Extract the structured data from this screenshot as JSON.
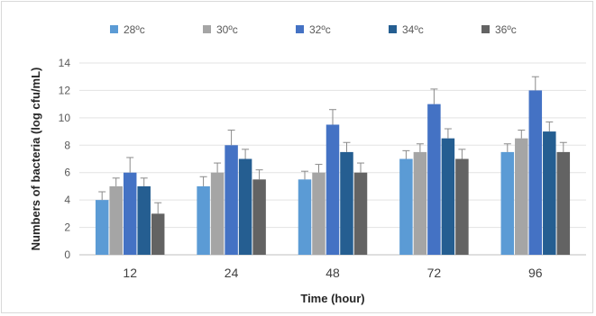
{
  "chart_data": {
    "type": "bar",
    "title": "",
    "xlabel": "Time (hour)",
    "ylabel": "Numbers of bacteria (log cfu/mL)",
    "categories": [
      "12",
      "24",
      "48",
      "72",
      "96"
    ],
    "ylim": [
      0,
      14
    ],
    "yticks": [
      0,
      2,
      4,
      6,
      8,
      10,
      12,
      14
    ],
    "grid": "horizontal",
    "legend_position": "top",
    "series": [
      {
        "name": "28ºc",
        "color": "#5b9bd5",
        "values": [
          4.0,
          5.0,
          5.5,
          7.0,
          7.5
        ],
        "errors": [
          0.6,
          0.7,
          0.6,
          0.6,
          0.6
        ]
      },
      {
        "name": "30ºc",
        "color": "#a5a5a5",
        "values": [
          5.0,
          6.0,
          6.0,
          7.5,
          8.5
        ],
        "errors": [
          0.6,
          0.7,
          0.6,
          0.6,
          0.6
        ]
      },
      {
        "name": "32ºc",
        "color": "#4472c4",
        "values": [
          6.0,
          8.0,
          9.5,
          11.0,
          12.0
        ],
        "errors": [
          1.1,
          1.1,
          1.1,
          1.1,
          1.0
        ]
      },
      {
        "name": "34ºc",
        "color": "#255e91",
        "values": [
          5.0,
          7.0,
          7.5,
          8.5,
          9.0
        ],
        "errors": [
          0.6,
          0.7,
          0.7,
          0.7,
          0.7
        ]
      },
      {
        "name": "36ºc",
        "color": "#636363",
        "values": [
          3.0,
          5.5,
          6.0,
          7.0,
          7.5
        ],
        "errors": [
          0.8,
          0.7,
          0.7,
          0.7,
          0.7
        ]
      }
    ]
  }
}
